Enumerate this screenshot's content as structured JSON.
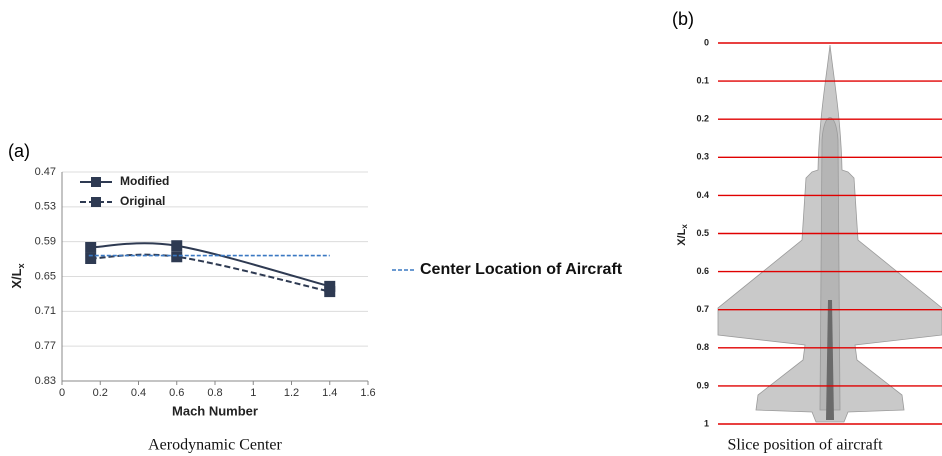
{
  "chart_data": [
    {
      "type": "line",
      "panel": "(a)",
      "caption": "Aerodynamic Center",
      "xlabel": "Mach Number",
      "ylabel": {
        "main": "X/L",
        "sub": "x"
      },
      "xlim": [
        0,
        1.6
      ],
      "xticks": [
        0,
        0.2,
        0.4,
        0.6,
        0.8,
        1,
        1.2,
        1.4,
        1.6
      ],
      "ylim": [
        0.47,
        0.83
      ],
      "yticks": [
        0.47,
        0.53,
        0.59,
        0.65,
        0.71,
        0.77,
        0.83
      ],
      "y_inverted": true,
      "grid": true,
      "series": [
        {
          "name": "Modified",
          "color": "#2e3a52",
          "dashed": false,
          "markers": true,
          "x": [
            0.15,
            0.6,
            1.4
          ],
          "values": [
            0.6,
            0.597,
            0.667
          ]
        },
        {
          "name": "Original",
          "color": "#2e3a52",
          "dashed": true,
          "markers": true,
          "x": [
            0.15,
            0.6,
            1.4
          ],
          "values": [
            0.619,
            0.616,
            0.676
          ]
        },
        {
          "name": "Center Location of Aircraft",
          "color": "#3a78c2",
          "dashed": true,
          "markers": false,
          "x": [
            0.14,
            1.4
          ],
          "values": [
            0.614,
            0.614
          ]
        }
      ]
    },
    {
      "type": "slices",
      "panel": "(b)",
      "caption": "Slice position of aircraft",
      "ylabel": {
        "main": "X/L",
        "sub": "x"
      },
      "ylim": [
        0,
        1
      ],
      "yticks": [
        0,
        0.1,
        0.2,
        0.3,
        0.4,
        0.5,
        0.6,
        0.7,
        0.8,
        0.9,
        1
      ],
      "grid": true,
      "grid_color": "#e00000"
    }
  ]
}
